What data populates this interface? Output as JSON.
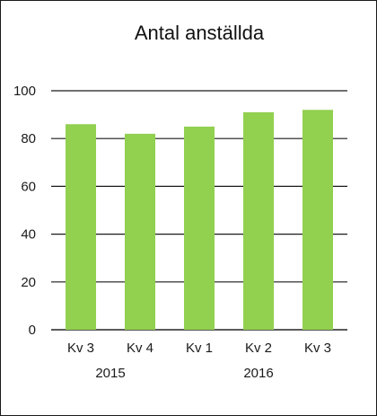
{
  "chart_data": {
    "type": "bar",
    "title": "Antal anställda",
    "xlabel": "",
    "ylabel": "",
    "categories": [
      "Kv 3",
      "Kv 4",
      "Kv 1",
      "Kv 2",
      "Kv 3"
    ],
    "group_labels": [
      {
        "label": "2015",
        "categories": [
          "Kv 3",
          "Kv 4"
        ]
      },
      {
        "label": "2016",
        "categories": [
          "Kv 1",
          "Kv 2",
          "Kv 3"
        ]
      }
    ],
    "values": [
      86,
      82,
      85,
      91,
      92
    ],
    "ylim": [
      0,
      100
    ],
    "yticks": [
      0,
      20,
      40,
      60,
      80,
      100
    ],
    "grid": true,
    "legend": "none",
    "colors": {
      "bar": "#92d050",
      "grid": "#1a1a1a",
      "text": "#1a1a1a"
    }
  }
}
